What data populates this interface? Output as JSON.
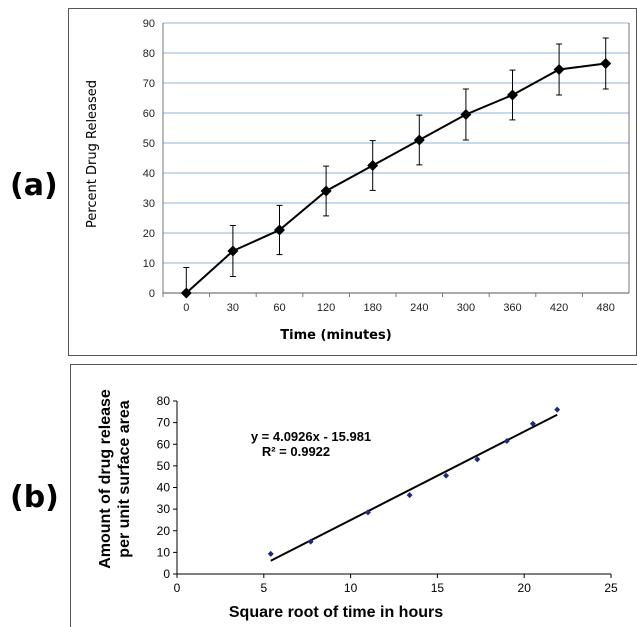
{
  "panels": {
    "a_label": "(a)",
    "b_label": "(b)"
  },
  "chart_data": [
    {
      "type": "line",
      "categories": [
        "0",
        "30",
        "60",
        "120",
        "180",
        "240",
        "300",
        "360",
        "420",
        "480"
      ],
      "values": [
        0,
        14,
        21,
        34,
        42.5,
        51,
        59.5,
        66,
        74.5,
        76.5
      ],
      "error": [
        8.5,
        8.5,
        8.2,
        8.3,
        8.3,
        8.3,
        8.5,
        8.3,
        8.5,
        8.5
      ],
      "title": "",
      "xlabel": "Time (minutes)",
      "ylabel": "Percent Drug Released",
      "ylim": [
        0,
        90
      ],
      "yticks": [
        0,
        10,
        20,
        30,
        40,
        50,
        60,
        70,
        80,
        90
      ],
      "grid": true,
      "colors": {
        "line": "#000000",
        "grid": "#8fb3d9",
        "marker": "#000000"
      }
    },
    {
      "type": "scatter",
      "x": [
        5.4,
        7.7,
        11.0,
        13.4,
        15.5,
        17.3,
        19.0,
        20.5,
        21.9
      ],
      "y": [
        9.3,
        15,
        28.5,
        36.5,
        45.5,
        53,
        61.5,
        69.5,
        76
      ],
      "title": "",
      "xlabel": "Square root of time in hours",
      "ylabel": "Amount of drug release per unit surface area",
      "ylabel_lines": [
        "Amount of drug release",
        "per unit surface area"
      ],
      "xlim": [
        0,
        25
      ],
      "ylim": [
        0,
        80
      ],
      "xticks": [
        0,
        5,
        10,
        15,
        20,
        25
      ],
      "yticks": [
        0,
        10,
        20,
        30,
        40,
        50,
        60,
        70,
        80
      ],
      "trendline": {
        "slope": 4.0926,
        "intercept": -15.981,
        "x_range": [
          5.4,
          21.9
        ]
      },
      "equation": "y = 4.0926x - 15.981",
      "r2": "R² = 0.9922",
      "grid": false,
      "colors": {
        "marker": "#1f2a7a",
        "line": "#000000"
      }
    }
  ]
}
